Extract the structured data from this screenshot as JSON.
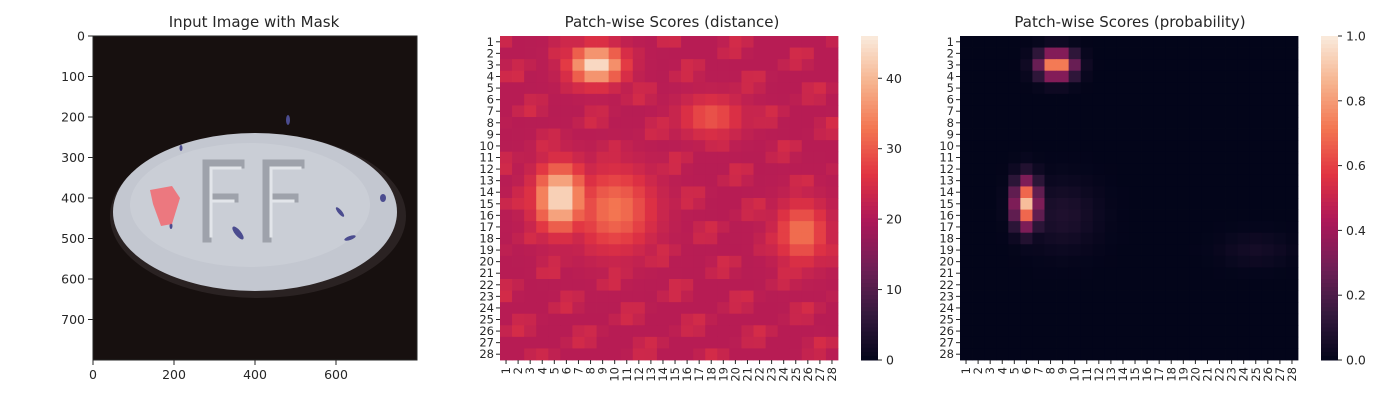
{
  "colors": {
    "rocket_stops": [
      "#03051a",
      "#35193e",
      "#701f57",
      "#ad1759",
      "#e13342",
      "#f37651",
      "#f6b48f",
      "#faebdd"
    ],
    "pill": "#c4c8d1",
    "pill_edge": "#a9adb6",
    "background_photo": "#17100f",
    "mask": "#f06f75",
    "speck": "#4b4c8f"
  },
  "chart_data": [
    {
      "type": "image",
      "title": "Input Image with Mask",
      "xlabel": "",
      "ylabel": "",
      "image_extent": [
        0,
        800,
        0,
        800
      ],
      "x_ticks": [
        "0",
        "200",
        "400",
        "600"
      ],
      "y_ticks": [
        "0",
        "100",
        "200",
        "300",
        "400",
        "500",
        "600",
        "700"
      ],
      "content": "pill-image",
      "engraving": "FF"
    },
    {
      "type": "heatmap",
      "title": "Patch-wise Scores (distance)",
      "xlabel": "",
      "ylabel": "",
      "grid_size": 28,
      "x_ticks": [
        "1",
        "2",
        "3",
        "4",
        "5",
        "6",
        "7",
        "8",
        "9",
        "10",
        "11",
        "12",
        "13",
        "14",
        "15",
        "16",
        "17",
        "18",
        "19",
        "20",
        "21",
        "22",
        "23",
        "24",
        "25",
        "26",
        "27",
        "28"
      ],
      "y_ticks": [
        "1",
        "2",
        "3",
        "4",
        "5",
        "6",
        "7",
        "8",
        "9",
        "10",
        "11",
        "12",
        "13",
        "14",
        "15",
        "16",
        "17",
        "18",
        "19",
        "20",
        "21",
        "22",
        "23",
        "24",
        "25",
        "26",
        "27",
        "28"
      ],
      "colorbar": {
        "min": 0,
        "max": 46,
        "ticks": [
          "0",
          "10",
          "20",
          "30",
          "40"
        ],
        "tick_values": [
          0,
          10,
          20,
          30,
          40
        ]
      },
      "base_value": 21,
      "hotspots": [
        {
          "row": 3,
          "col": 8.5,
          "peak": 45,
          "sigma_row": 1.1,
          "sigma_col": 1.5
        },
        {
          "row": 14.5,
          "col": 5.5,
          "peak": 45,
          "sigma_row": 1.9,
          "sigma_col": 1.4
        },
        {
          "row": 15.5,
          "col": 10,
          "peak": 33,
          "sigma_row": 2.4,
          "sigma_col": 2.2
        },
        {
          "row": 17.5,
          "col": 25.5,
          "peak": 33,
          "sigma_row": 1.8,
          "sigma_col": 1.4
        },
        {
          "row": 7.5,
          "col": 18,
          "peak": 30,
          "sigma_row": 1.2,
          "sigma_col": 1.8
        }
      ]
    },
    {
      "type": "heatmap",
      "title": "Patch-wise Scores (probability)",
      "xlabel": "",
      "ylabel": "",
      "grid_size": 28,
      "x_ticks": [
        "1",
        "2",
        "3",
        "4",
        "5",
        "6",
        "7",
        "8",
        "9",
        "10",
        "11",
        "12",
        "13",
        "14",
        "15",
        "16",
        "17",
        "18",
        "19",
        "20",
        "21",
        "22",
        "23",
        "24",
        "25",
        "26",
        "27",
        "28"
      ],
      "y_ticks": [
        "1",
        "2",
        "3",
        "4",
        "5",
        "6",
        "7",
        "8",
        "9",
        "10",
        "11",
        "12",
        "13",
        "14",
        "15",
        "16",
        "17",
        "18",
        "19",
        "20",
        "21",
        "22",
        "23",
        "24",
        "25",
        "26",
        "27",
        "28"
      ],
      "colorbar": {
        "min": 0,
        "max": 1,
        "ticks": [
          "0.0",
          "0.2",
          "0.4",
          "0.6",
          "0.8",
          "1.0"
        ],
        "tick_values": [
          0,
          0.2,
          0.4,
          0.6,
          0.8,
          1.0
        ]
      },
      "base_value": 0,
      "hotspots": [
        {
          "row": 3,
          "col": 8.5,
          "peak": 0.82,
          "sigma_row": 0.8,
          "sigma_col": 1.0
        },
        {
          "row": 15,
          "col": 6,
          "peak": 0.88,
          "sigma_row": 1.4,
          "sigma_col": 0.7
        },
        {
          "row": 16,
          "col": 9,
          "peak": 0.08,
          "sigma_row": 2.0,
          "sigma_col": 2.0
        },
        {
          "row": 19,
          "col": 25,
          "peak": 0.05,
          "sigma_row": 1.0,
          "sigma_col": 2.0
        }
      ]
    }
  ]
}
